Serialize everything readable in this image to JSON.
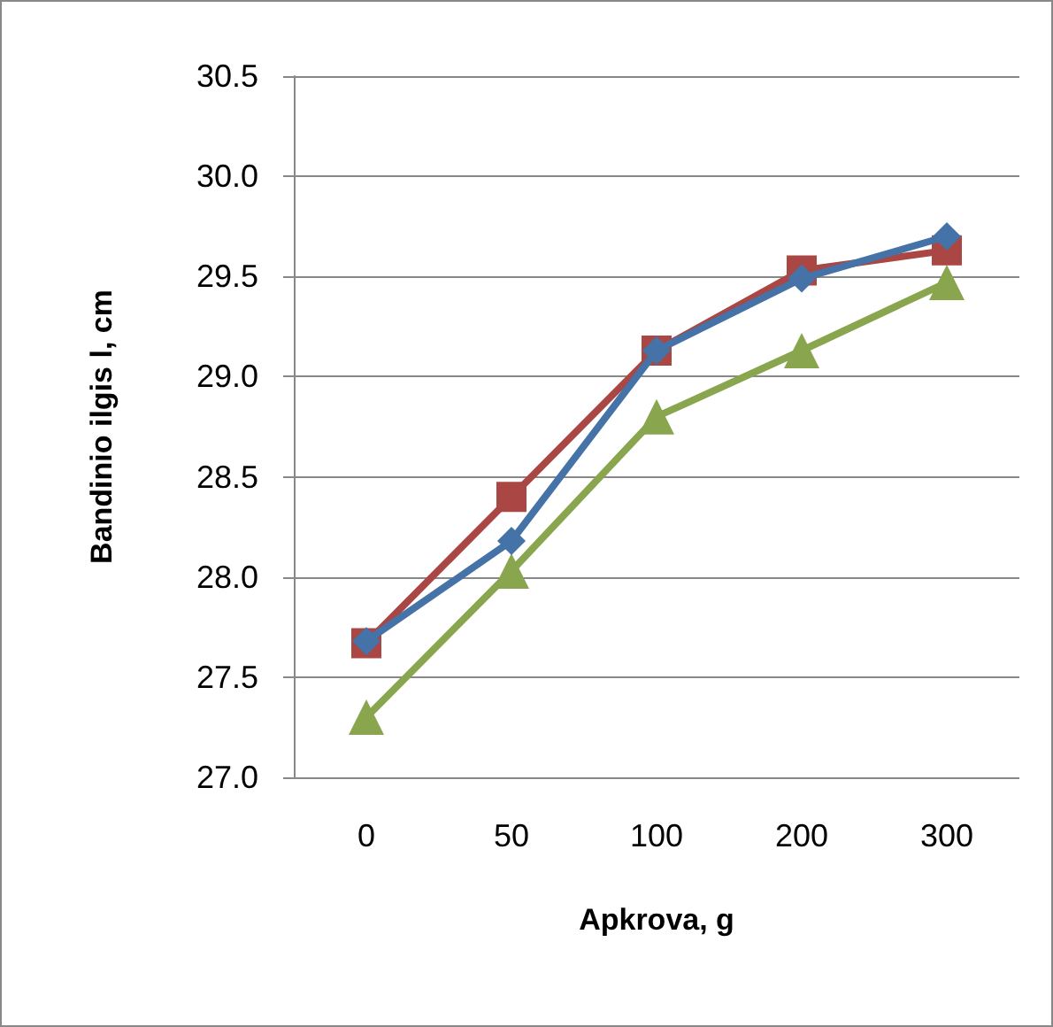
{
  "chart_data": {
    "type": "line",
    "xlabel": "Apkrova, g",
    "ylabel": "Bandinio ilgis l, cm",
    "categories": [
      "0",
      "50",
      "100",
      "200",
      "300"
    ],
    "series": [
      {
        "color": "#4572a7",
        "marker": "diamond",
        "values": [
          27.68,
          28.18,
          29.13,
          29.49,
          29.7
        ]
      },
      {
        "color": "#aa4643",
        "marker": "square",
        "values": [
          27.67,
          28.4,
          29.13,
          29.53,
          29.63
        ]
      },
      {
        "color": "#89a54e",
        "marker": "triangle",
        "values": [
          27.3,
          28.03,
          28.8,
          29.13,
          29.47
        ]
      }
    ],
    "ylim": [
      27.0,
      30.5
    ],
    "yticks": [
      {
        "value": 27.0,
        "label": "27.0"
      },
      {
        "value": 27.5,
        "label": "27.5"
      },
      {
        "value": 28.0,
        "label": "28.0"
      },
      {
        "value": 28.5,
        "label": "28.5"
      },
      {
        "value": 29.0,
        "label": "29.0"
      },
      {
        "value": 29.5,
        "label": "29.5"
      },
      {
        "value": 30.0,
        "label": "30.0"
      },
      {
        "value": 30.5,
        "label": "30.5"
      }
    ],
    "grid": "y",
    "line_style": "solid"
  }
}
